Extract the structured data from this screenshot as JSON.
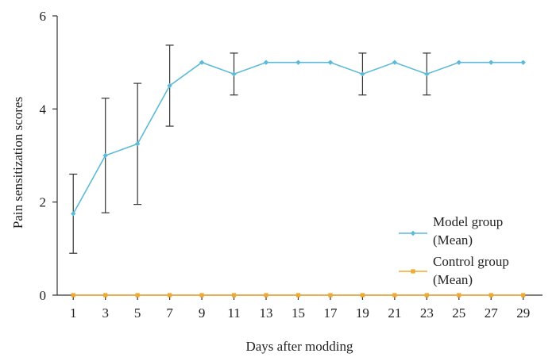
{
  "chart_data": {
    "type": "line",
    "title": "",
    "xlabel": "Days after modding",
    "ylabel": "Pain sensitization scores",
    "x": [
      1,
      3,
      5,
      7,
      9,
      11,
      13,
      15,
      17,
      19,
      21,
      23,
      25,
      27,
      29
    ],
    "x_ticks": [
      "1",
      "3",
      "5",
      "7",
      "9",
      "11",
      "13",
      "15",
      "17",
      "19",
      "21",
      "23",
      "25",
      "27",
      "29"
    ],
    "y_ticks": [
      "0",
      "2",
      "4",
      "6"
    ],
    "ylim": [
      0,
      6
    ],
    "xlim": [
      0,
      30.2
    ],
    "grid": false,
    "legend_position": "right",
    "series": [
      {
        "name_line1": "Model group",
        "name_line2": "(Mean)",
        "color": "#5BBAD8",
        "values": [
          1.75,
          3.0,
          3.25,
          4.5,
          5.0,
          4.75,
          5.0,
          5.0,
          5.0,
          4.75,
          5.0,
          4.75,
          5.0,
          5.0,
          5.0
        ],
        "error": [
          0.85,
          1.23,
          1.3,
          0.87,
          0,
          0.45,
          0,
          0,
          0,
          0.45,
          0,
          0.45,
          0,
          0,
          0
        ]
      },
      {
        "name_line1": "Control group",
        "name_line2": "(Mean)",
        "color": "#F0A830",
        "values": [
          0,
          0,
          0,
          0,
          0,
          0,
          0,
          0,
          0,
          0,
          0,
          0,
          0,
          0,
          0
        ],
        "error": [
          0,
          0,
          0,
          0,
          0,
          0,
          0,
          0,
          0,
          0,
          0,
          0,
          0,
          0,
          0
        ]
      }
    ]
  },
  "colors": {
    "axis": "#333333",
    "error_bar": "#333333"
  }
}
